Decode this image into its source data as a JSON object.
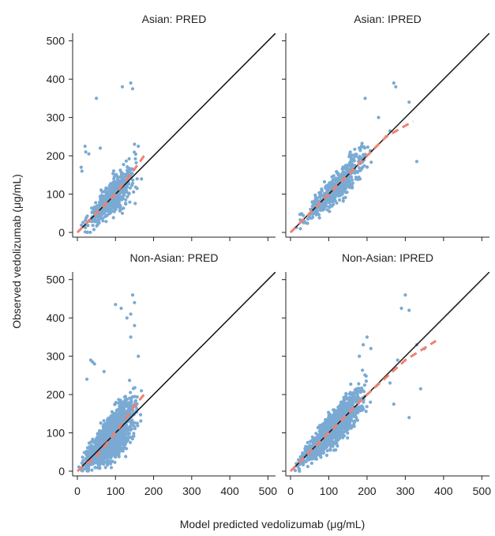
{
  "figure": {
    "xlabel": "Model predicted vedolizumab (μg/mL)",
    "ylabel": "Observed vedolizumab (μg/mL)"
  },
  "chart_data": [
    {
      "type": "scatter",
      "title": "Asian: PRED",
      "xlim": [
        0,
        500
      ],
      "ylim": [
        0,
        500
      ],
      "xticks": [
        "0",
        "100",
        "200",
        "300",
        "400",
        "500"
      ],
      "yticks": [
        "0",
        "100",
        "200",
        "300",
        "400",
        "500"
      ],
      "point_color": "#7aaad3",
      "reference_line": {
        "type": "identity",
        "from": [
          0,
          0
        ],
        "to": [
          520,
          520
        ],
        "color": "#111111"
      },
      "loess_trend": {
        "color": "#f08070",
        "points": [
          [
            0,
            0
          ],
          [
            50,
            50
          ],
          [
            100,
            100
          ],
          [
            150,
            165
          ],
          [
            175,
            200
          ]
        ]
      },
      "cloud": {
        "n": 600,
        "x_range": [
          0,
          170
        ],
        "x_mode": 115,
        "y_slope": 1.0,
        "y_intercept": 0,
        "y_sd": 28
      },
      "outliers": [
        [
          50,
          350
        ],
        [
          118,
          380
        ],
        [
          140,
          390
        ],
        [
          145,
          375
        ],
        [
          20,
          225
        ],
        [
          22,
          210
        ],
        [
          30,
          205
        ],
        [
          10,
          170
        ],
        [
          12,
          160
        ],
        [
          60,
          220
        ],
        [
          150,
          230
        ],
        [
          160,
          225
        ]
      ]
    },
    {
      "type": "scatter",
      "title": "Asian: IPRED",
      "xlim": [
        0,
        500
      ],
      "ylim": [
        0,
        500
      ],
      "xticks": [
        "0",
        "100",
        "200",
        "300",
        "400",
        "500"
      ],
      "yticks": [
        "0",
        "100",
        "200",
        "300",
        "400",
        "500"
      ],
      "point_color": "#7aaad3",
      "reference_line": {
        "type": "identity",
        "from": [
          0,
          0
        ],
        "to": [
          520,
          520
        ],
        "color": "#111111"
      },
      "loess_trend": {
        "color": "#f08070",
        "points": [
          [
            0,
            0
          ],
          [
            100,
            100
          ],
          [
            200,
            200
          ],
          [
            250,
            250
          ],
          [
            320,
            290
          ]
        ]
      },
      "cloud": {
        "n": 500,
        "x_range": [
          0,
          240
        ],
        "x_mode": 140,
        "y_slope": 1.0,
        "y_intercept": 0,
        "y_sd": 24
      },
      "outliers": [
        [
          270,
          390
        ],
        [
          275,
          380
        ],
        [
          195,
          350
        ],
        [
          310,
          340
        ],
        [
          330,
          185
        ],
        [
          230,
          300
        ],
        [
          260,
          265
        ],
        [
          250,
          250
        ]
      ]
    },
    {
      "type": "scatter",
      "title": "Non-Asian: PRED",
      "xlim": [
        0,
        500
      ],
      "ylim": [
        0,
        500
      ],
      "xticks": [
        "0",
        "100",
        "200",
        "300",
        "400",
        "500"
      ],
      "yticks": [
        "0",
        "100",
        "200",
        "300",
        "400",
        "500"
      ],
      "point_color": "#7aaad3",
      "reference_line": {
        "type": "identity",
        "from": [
          0,
          0
        ],
        "to": [
          520,
          520
        ],
        "color": "#111111"
      },
      "loess_trend": {
        "color": "#f08070",
        "points": [
          [
            0,
            0
          ],
          [
            50,
            40
          ],
          [
            100,
            100
          ],
          [
            150,
            170
          ],
          [
            175,
            200
          ]
        ]
      },
      "cloud": {
        "n": 1600,
        "x_range": [
          0,
          170
        ],
        "x_mode": 120,
        "y_slope": 1.0,
        "y_intercept": 0,
        "y_sd": 34
      },
      "outliers": [
        [
          100,
          435
        ],
        [
          115,
          425
        ],
        [
          145,
          460
        ],
        [
          150,
          440
        ],
        [
          140,
          410
        ],
        [
          130,
          400
        ],
        [
          35,
          290
        ],
        [
          40,
          285
        ],
        [
          45,
          280
        ],
        [
          25,
          240
        ],
        [
          70,
          260
        ],
        [
          160,
          300
        ],
        [
          150,
          380
        ],
        [
          140,
          350
        ]
      ]
    },
    {
      "type": "scatter",
      "title": "Non-Asian: IPRED",
      "xlim": [
        0,
        500
      ],
      "ylim": [
        0,
        500
      ],
      "xticks": [
        "0",
        "100",
        "200",
        "300",
        "400",
        "500"
      ],
      "yticks": [
        "0",
        "100",
        "200",
        "300",
        "400",
        "500"
      ],
      "point_color": "#7aaad3",
      "reference_line": {
        "type": "identity",
        "from": [
          0,
          0
        ],
        "to": [
          520,
          520
        ],
        "color": "#111111"
      },
      "loess_trend": {
        "color": "#f08070",
        "points": [
          [
            0,
            0
          ],
          [
            100,
            100
          ],
          [
            200,
            200
          ],
          [
            300,
            290
          ],
          [
            380,
            340
          ]
        ]
      },
      "cloud": {
        "n": 1600,
        "x_range": [
          0,
          220
        ],
        "x_mode": 130,
        "y_slope": 1.0,
        "y_intercept": 0,
        "y_sd": 26
      },
      "outliers": [
        [
          300,
          460
        ],
        [
          310,
          420
        ],
        [
          290,
          425
        ],
        [
          200,
          350
        ],
        [
          190,
          330
        ],
        [
          210,
          320
        ],
        [
          340,
          215
        ],
        [
          310,
          140
        ],
        [
          260,
          230
        ],
        [
          270,
          175
        ],
        [
          330,
          330
        ],
        [
          350,
          320
        ],
        [
          280,
          290
        ],
        [
          180,
          300
        ]
      ]
    }
  ]
}
